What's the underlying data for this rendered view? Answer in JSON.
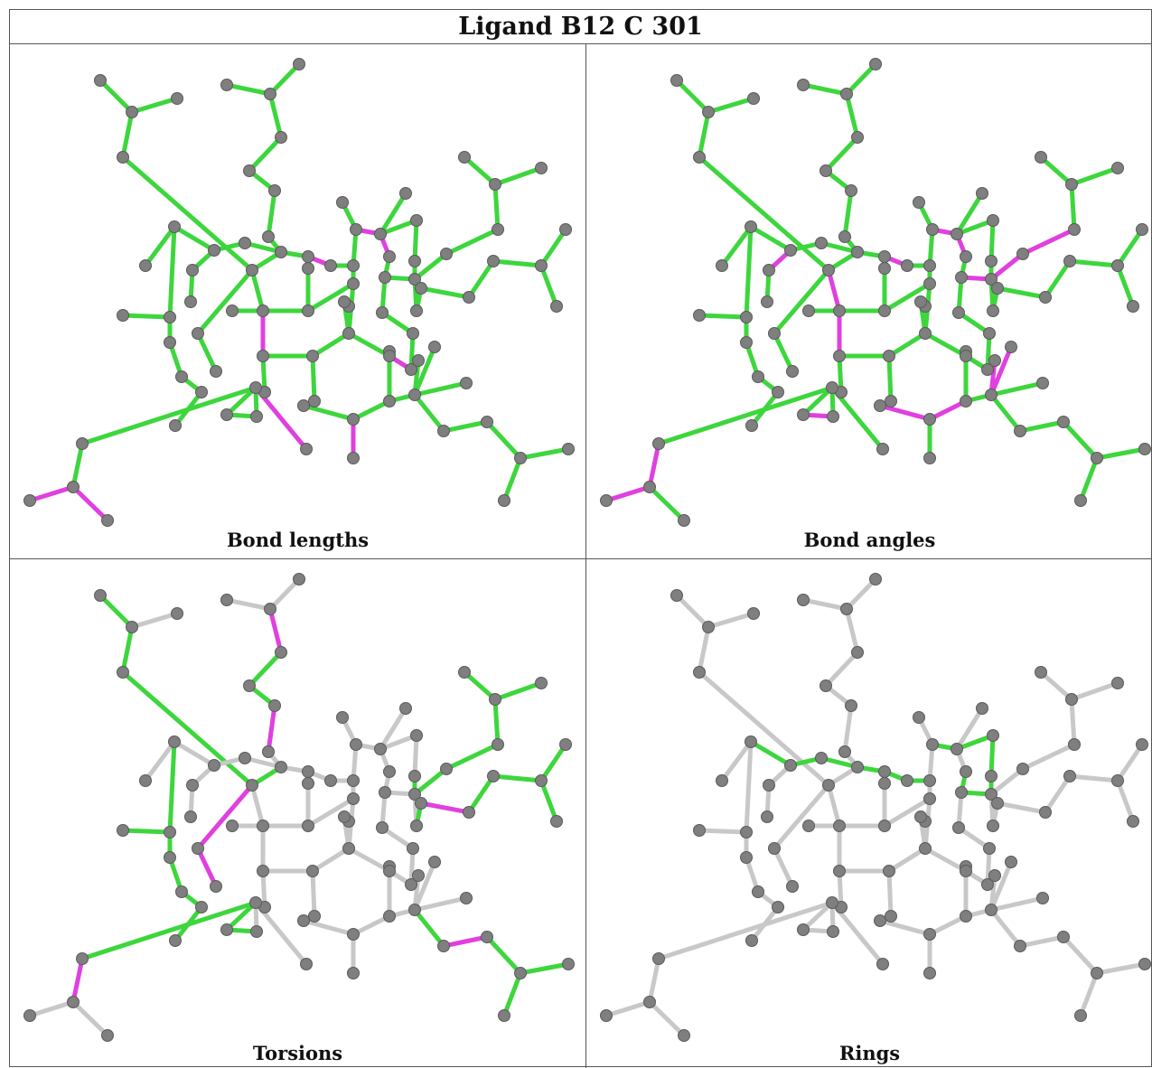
{
  "title": "Ligand B12 C 301",
  "colors": {
    "atom": "#7f7f7f",
    "bond_ok": "#3dd63d",
    "bond_outlier": "#e040e0",
    "bond_neutral": "#c8c8c8"
  },
  "panels": [
    {
      "id": "bond-lengths",
      "caption": "Bond lengths"
    },
    {
      "id": "bond-angles",
      "caption": "Bond angles"
    },
    {
      "id": "torsions",
      "caption": "Torsions"
    },
    {
      "id": "rings",
      "caption": "Rings"
    }
  ]
}
